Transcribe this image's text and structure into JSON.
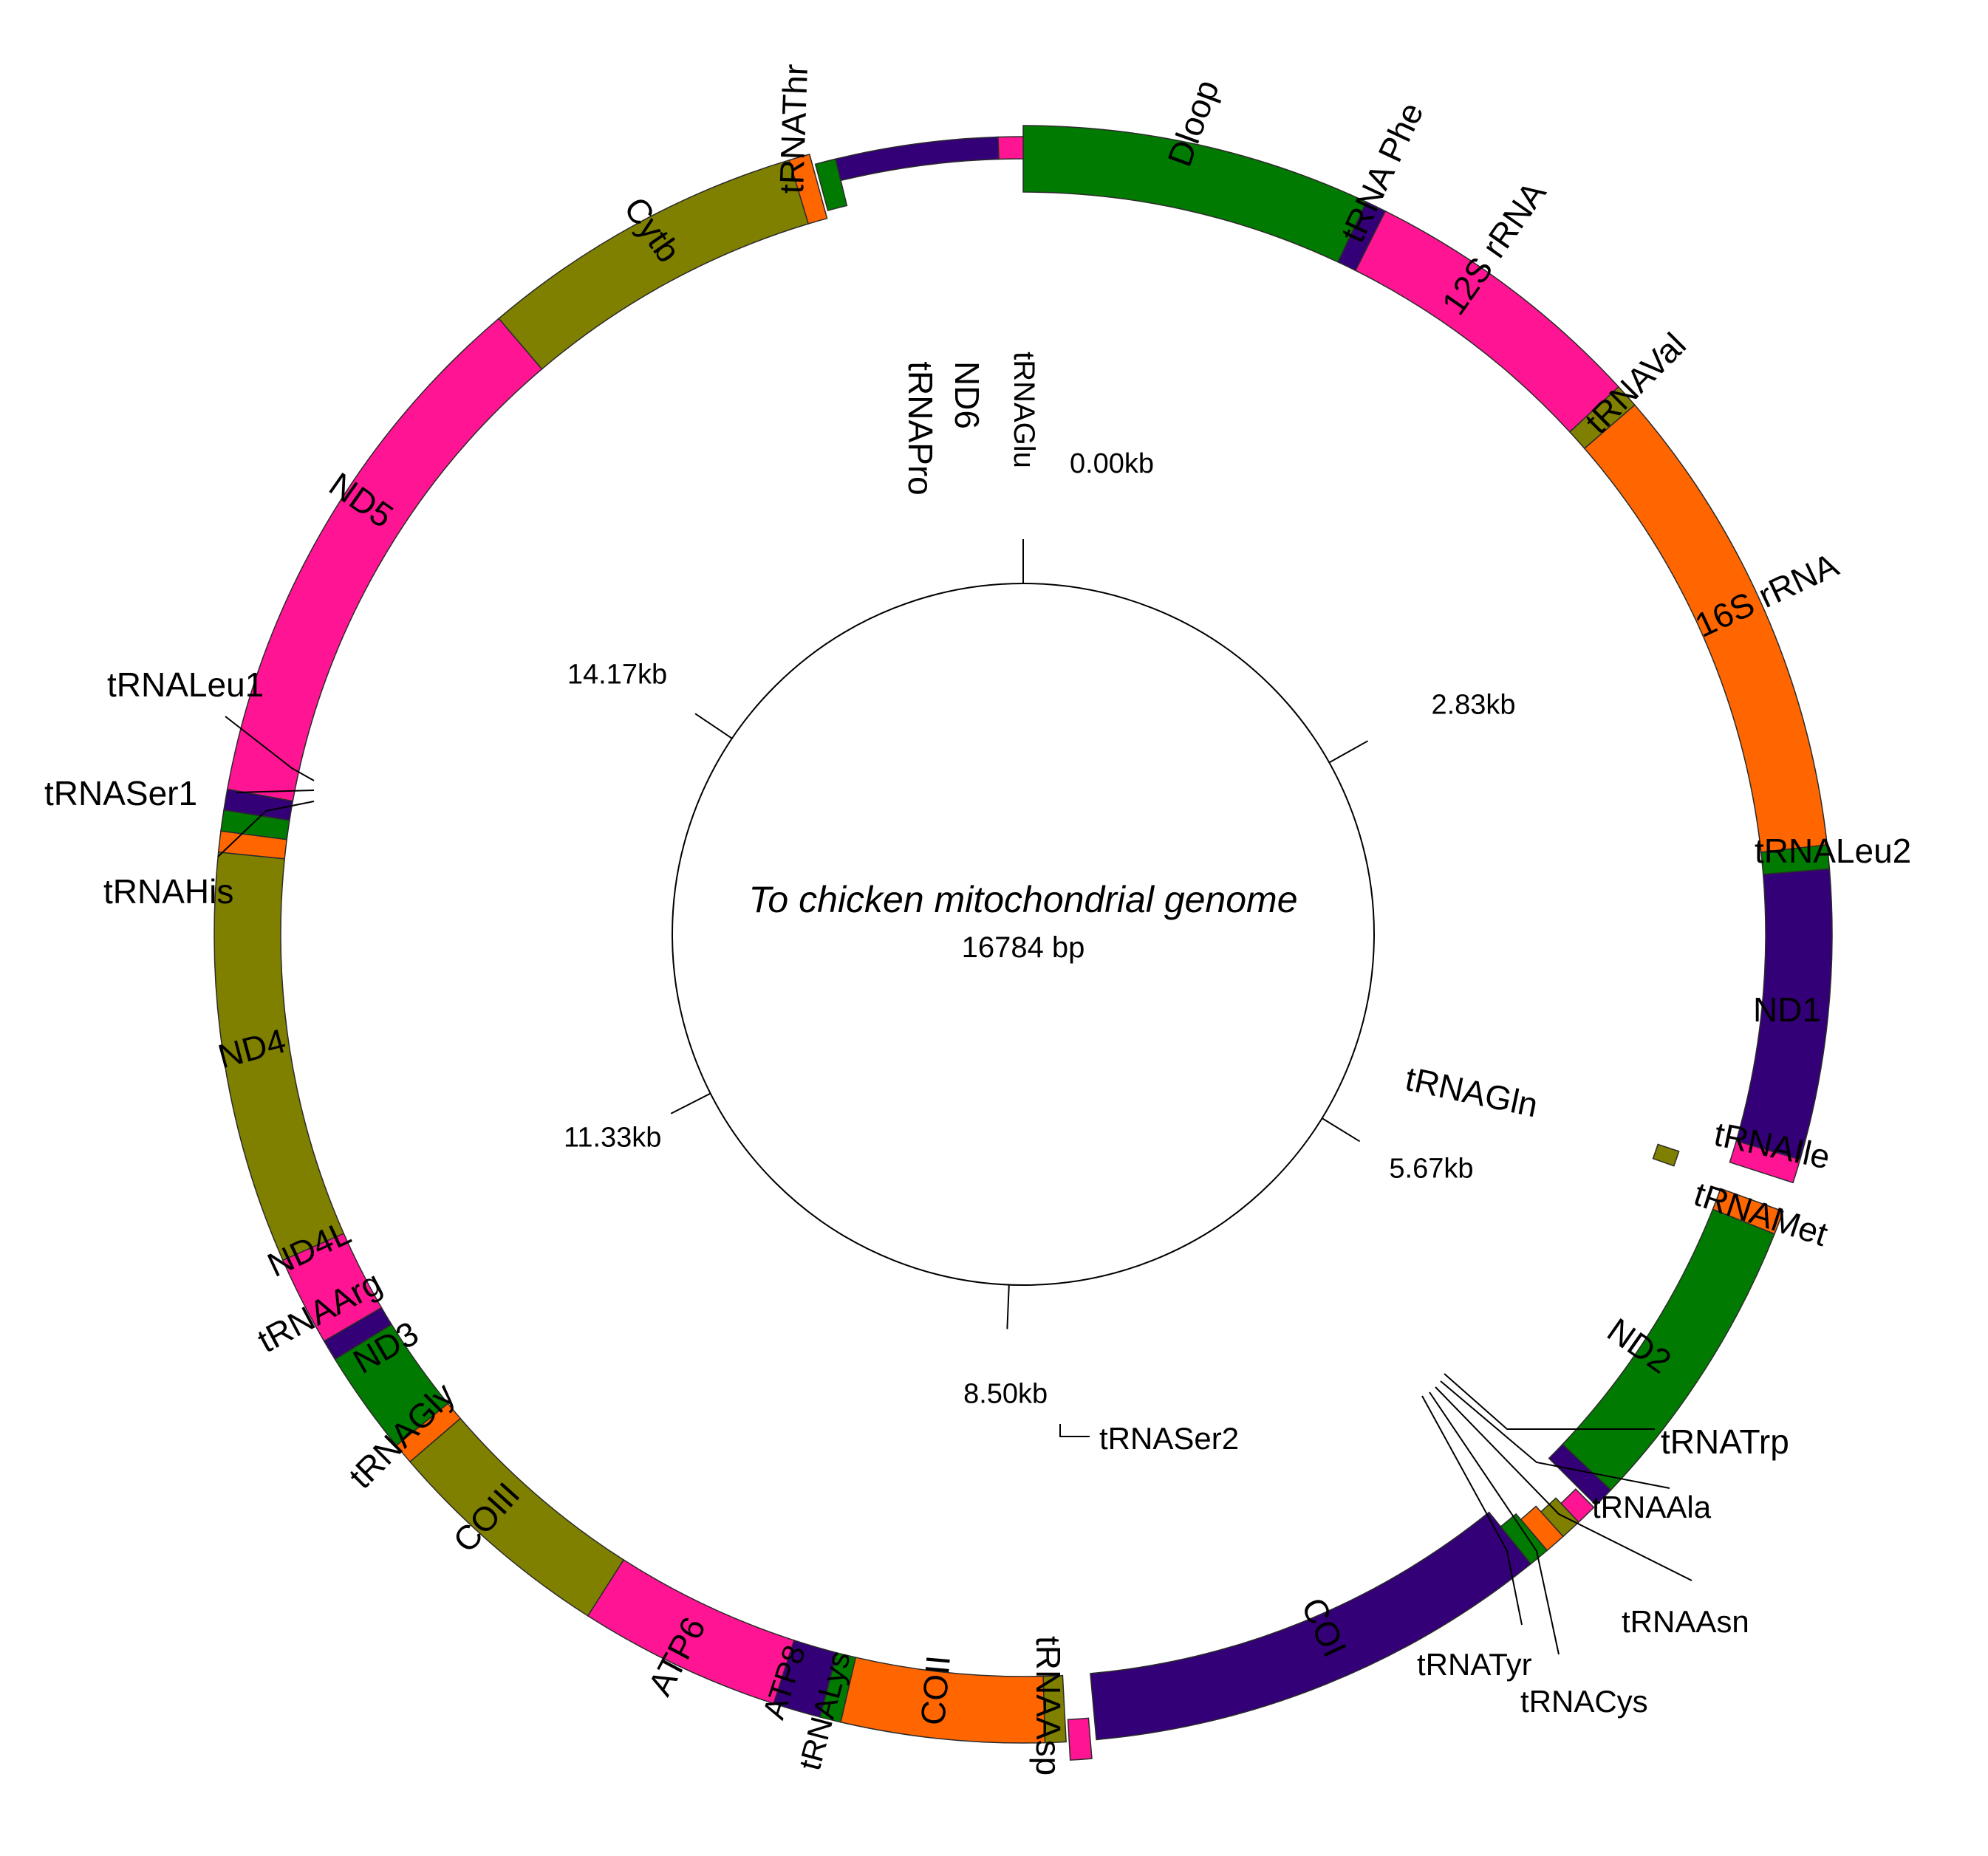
{
  "title": "To chicken mitochondrial genome",
  "subtitle": "16784 bp",
  "genome_length_bp": 16784,
  "colors": {
    "green": "#007a00",
    "purple": "#330077",
    "magenta": "#ff1493",
    "orange": "#ff6600",
    "olive": "#7f7f00"
  },
  "scale_ticks": [
    {
      "label": "0.00kb",
      "position_kb": 0.0
    },
    {
      "label": "2.83kb",
      "position_kb": 2.83
    },
    {
      "label": "5.67kb",
      "position_kb": 5.67
    },
    {
      "label": "8.50kb",
      "position_kb": 8.5
    },
    {
      "label": "11.33kb",
      "position_kb": 11.33
    },
    {
      "label": "14.17kb",
      "position_kb": 14.17
    }
  ],
  "genes": [
    {
      "id": "dloop",
      "name": "Dloop",
      "start": 0,
      "end": 1170,
      "color": "green",
      "ring": "outer"
    },
    {
      "id": "trna-phe",
      "name": "tRNA Phe",
      "start": 1170,
      "end": 1240,
      "color": "purple",
      "ring": "outer"
    },
    {
      "id": "12s-rrna",
      "name": "12S rRNA",
      "start": 1240,
      "end": 2210,
      "color": "magenta",
      "ring": "outer"
    },
    {
      "id": "trna-val",
      "name": "tRNAVal",
      "start": 2210,
      "end": 2290,
      "color": "olive",
      "ring": "outer"
    },
    {
      "id": "16s-rrna",
      "name": "16S rRNA",
      "start": 2290,
      "end": 3900,
      "color": "orange",
      "ring": "outer"
    },
    {
      "id": "trna-leu2",
      "name": "tRNALeu2",
      "start": 3900,
      "end": 3980,
      "color": "green",
      "ring": "outer"
    },
    {
      "id": "nd1",
      "name": "ND1",
      "start": 3980,
      "end": 4950,
      "color": "purple",
      "ring": "outer"
    },
    {
      "id": "trna-ile",
      "name": "tRNAIle",
      "start": 4950,
      "end": 5030,
      "color": "magenta",
      "ring": "outer"
    },
    {
      "id": "trna-gln",
      "name": "tRNAGln",
      "start": 5050,
      "end": 5110,
      "color": "olive",
      "ring": "inner-shifted"
    },
    {
      "id": "trna-met",
      "name": "tRNAMet",
      "start": 5130,
      "end": 5210,
      "color": "orange",
      "ring": "outer"
    },
    {
      "id": "nd2",
      "name": "ND2",
      "start": 5210,
      "end": 6220,
      "color": "green",
      "ring": "outer"
    },
    {
      "id": "trna-trp",
      "name": "tRNATrp",
      "start": 6220,
      "end": 6290,
      "color": "purple",
      "ring": "outer"
    },
    {
      "id": "trna-ala",
      "name": "tRNAAla",
      "start": 6300,
      "end": 6370,
      "color": "magenta",
      "ring": "inner"
    },
    {
      "id": "trna-asn",
      "name": "tRNAAsn",
      "start": 6370,
      "end": 6440,
      "color": "olive",
      "ring": "inner"
    },
    {
      "id": "trna-cys",
      "name": "tRNACys",
      "start": 6440,
      "end": 6510,
      "color": "orange",
      "ring": "inner"
    },
    {
      "id": "trna-tyr",
      "name": "tRNATyr",
      "start": 6510,
      "end": 6580,
      "color": "green",
      "ring": "inner"
    },
    {
      "id": "coi",
      "name": "COI",
      "start": 6580,
      "end": 8150,
      "color": "purple",
      "ring": "outer"
    },
    {
      "id": "trna-ser2",
      "name": "tRNASer2",
      "start": 8170,
      "end": 8240,
      "color": "magenta",
      "ring": "inner"
    },
    {
      "id": "trna-asp",
      "name": "tRNAAsp",
      "start": 8250,
      "end": 8320,
      "color": "olive",
      "ring": "outer"
    },
    {
      "id": "coii",
      "name": "COII",
      "start": 8320,
      "end": 9000,
      "color": "orange",
      "ring": "outer"
    },
    {
      "id": "trna-lys",
      "name": "tRNALys",
      "start": 9000,
      "end": 9070,
      "color": "green",
      "ring": "outer"
    },
    {
      "id": "atp8",
      "name": "ATP8",
      "start": 9070,
      "end": 9230,
      "color": "purple",
      "ring": "outer"
    },
    {
      "id": "atp6",
      "name": "ATP6",
      "start": 9230,
      "end": 9910,
      "color": "magenta",
      "ring": "outer"
    },
    {
      "id": "coiii",
      "name": "COIII",
      "start": 9910,
      "end": 10690,
      "color": "olive",
      "ring": "outer"
    },
    {
      "id": "trna-gly",
      "name": "tRNAGly",
      "start": 10690,
      "end": 10760,
      "color": "orange",
      "ring": "outer"
    },
    {
      "id": "nd3",
      "name": "ND3",
      "start": 10760,
      "end": 11110,
      "color": "green",
      "ring": "outer"
    },
    {
      "id": "trna-arg",
      "name": "tRNAArg",
      "start": 11110,
      "end": 11180,
      "color": "purple",
      "ring": "outer"
    },
    {
      "id": "nd4l",
      "name": "ND4L",
      "start": 11180,
      "end": 11480,
      "color": "magenta",
      "ring": "outer"
    },
    {
      "id": "nd4",
      "name": "ND4",
      "start": 11480,
      "end": 12860,
      "color": "olive",
      "ring": "outer"
    },
    {
      "id": "trna-his",
      "name": "tRNAHis",
      "start": 12860,
      "end": 12930,
      "color": "orange",
      "ring": "outer"
    },
    {
      "id": "trna-ser1",
      "name": "tRNASer1",
      "start": 12930,
      "end": 13000,
      "color": "green",
      "ring": "outer"
    },
    {
      "id": "trna-leu1",
      "name": "tRNALeu1",
      "start": 13000,
      "end": 13070,
      "color": "purple",
      "ring": "outer"
    },
    {
      "id": "nd5",
      "name": "ND5",
      "start": 13070,
      "end": 14900,
      "color": "magenta",
      "ring": "outer"
    },
    {
      "id": "cytb",
      "name": "Cytb",
      "start": 14900,
      "end": 16000,
      "color": "olive",
      "ring": "outer"
    },
    {
      "id": "trna-thr",
      "name": "tRNAThr",
      "start": 16000,
      "end": 16070,
      "color": "orange",
      "ring": "outer"
    },
    {
      "id": "trna-pro",
      "name": "tRNAPro",
      "start": 16080,
      "end": 16150,
      "color": "green",
      "ring": "inner"
    },
    {
      "id": "nd6",
      "name": "ND6",
      "start": 16150,
      "end": 16700,
      "color": "purple",
      "ring": "inner"
    },
    {
      "id": "trna-glu",
      "name": "tRNAGlu",
      "start": 16700,
      "end": 16784,
      "color": "magenta",
      "ring": "inner"
    }
  ]
}
